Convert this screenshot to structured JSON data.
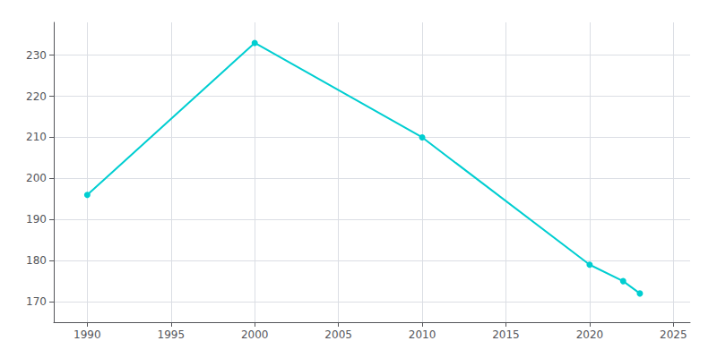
{
  "chart_data": {
    "type": "line",
    "x": [
      1990,
      2000,
      2010,
      2020,
      2022,
      2023
    ],
    "values": [
      196,
      233,
      210,
      179,
      175,
      172
    ],
    "color": "#00CED1",
    "marker": "circle",
    "xlim": [
      1988,
      2026
    ],
    "ylim": [
      165,
      238
    ],
    "xticks": [
      1990,
      1995,
      2000,
      2005,
      2010,
      2015,
      2020,
      2025
    ],
    "yticks": [
      170,
      180,
      190,
      200,
      210,
      220,
      230
    ],
    "grid": true
  }
}
